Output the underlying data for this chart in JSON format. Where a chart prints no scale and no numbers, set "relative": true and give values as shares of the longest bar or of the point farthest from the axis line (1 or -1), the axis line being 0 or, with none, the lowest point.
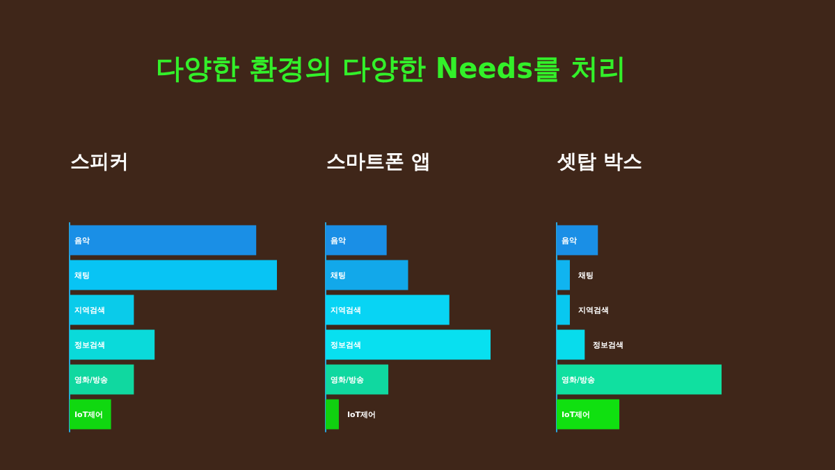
{
  "chart_data": [
    {
      "type": "bar",
      "orientation": "horizontal",
      "relative": true,
      "title": "스피커",
      "annotations": [
        "다양한 환경의 다양한 Needs를 처리"
      ],
      "categories": [
        "음악",
        "채팅",
        "지역검색",
        "정보검색",
        "영화/방송",
        "IoT제어"
      ],
      "values": [
        0.9,
        1,
        0.31,
        0.41,
        0.31,
        0.2
      ],
      "colors": [
        "#1a8fe6",
        "#08c4f4",
        "#0acbea",
        "#0adada",
        "#10d8a0",
        "#10d810"
      ]
    },
    {
      "type": "bar",
      "orientation": "horizontal",
      "relative": true,
      "title": "스마트폰 앱",
      "categories": [
        "음악",
        "채팅",
        "지역검색",
        "정보검색",
        "영화/방송",
        "IoT제어"
      ],
      "values": [
        0.37,
        0.5,
        0.75,
        1,
        0.38,
        0.08
      ],
      "colors": [
        "#1a8fe6",
        "#12a8ea",
        "#08d4f4",
        "#08e0f0",
        "#10d8a0",
        "#10d010"
      ]
    },
    {
      "type": "bar",
      "orientation": "horizontal",
      "relative": true,
      "title": "셋탑 박스",
      "categories": [
        "음악",
        "채팅",
        "지역검색",
        "정보검색",
        "영화/방송",
        "IoT제어"
      ],
      "values": [
        0.25,
        0.08,
        0.08,
        0.17,
        1,
        0.38
      ],
      "colors": [
        "#1a8fe6",
        "#10b4f0",
        "#08c8f0",
        "#08dcec",
        "#10e0a0",
        "#10e010"
      ]
    }
  ]
}
